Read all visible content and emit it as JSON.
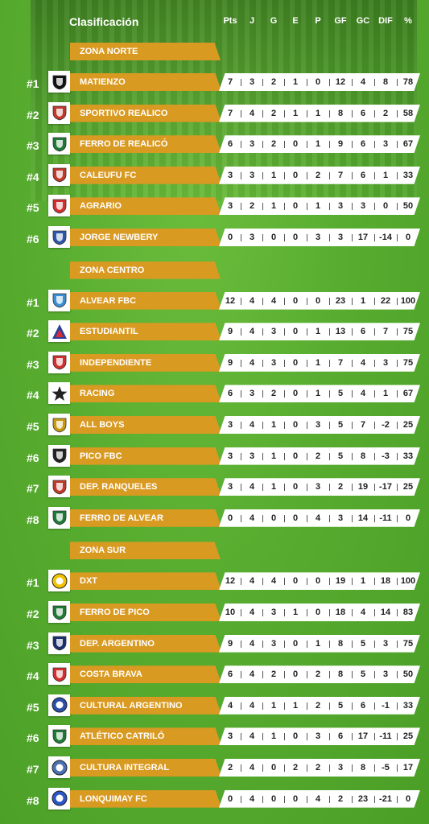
{
  "title": "Clasificación",
  "columns": [
    "Pts",
    "J",
    "G",
    "E",
    "P",
    "GF",
    "GC",
    "DIF",
    "%"
  ],
  "zones": [
    {
      "name": "ZONA NORTE",
      "teams": [
        {
          "rank": "#1",
          "name": "MATIENZO",
          "logo": "matienzo-crest-icon",
          "color": "#111111",
          "stats": [
            "7",
            "3",
            "2",
            "1",
            "0",
            "12",
            "4",
            "8",
            "78"
          ]
        },
        {
          "rank": "#2",
          "name": "SPORTIVO REALICO",
          "logo": "sportivo-realico-crest-icon",
          "color": "#c0392b",
          "stats": [
            "7",
            "4",
            "2",
            "1",
            "1",
            "8",
            "6",
            "2",
            "58"
          ]
        },
        {
          "rank": "#3",
          "name": "FERRO DE REALICÓ",
          "logo": "ferro-realico-crest-icon",
          "color": "#1e7a36",
          "stats": [
            "6",
            "3",
            "2",
            "0",
            "1",
            "9",
            "6",
            "3",
            "67"
          ]
        },
        {
          "rank": "#4",
          "name": "CALEUFU FC",
          "logo": "caleufu-crest-icon",
          "color": "#c0392b",
          "stats": [
            "3",
            "3",
            "1",
            "0",
            "2",
            "7",
            "6",
            "1",
            "33"
          ]
        },
        {
          "rank": "#5",
          "name": "AGRARIO",
          "logo": "agrario-crest-icon",
          "color": "#d32f2f",
          "stats": [
            "3",
            "2",
            "1",
            "0",
            "1",
            "3",
            "3",
            "0",
            "50"
          ]
        },
        {
          "rank": "#6",
          "name": "JORGE NEWBERY",
          "logo": "jorge-newbery-crest-icon",
          "color": "#2c56a8",
          "stats": [
            "0",
            "3",
            "0",
            "0",
            "3",
            "3",
            "17",
            "-14",
            "0"
          ]
        }
      ]
    },
    {
      "name": "ZONA CENTRO",
      "teams": [
        {
          "rank": "#1",
          "name": "ALVEAR FBC",
          "logo": "alvear-fbc-crest-icon",
          "color": "#3a8fd6",
          "stats": [
            "12",
            "4",
            "4",
            "0",
            "0",
            "23",
            "1",
            "22",
            "100"
          ]
        },
        {
          "rank": "#2",
          "name": "ESTUDIANTIL",
          "logo": "estudiantil-crest-icon",
          "color": "#2b3f9e",
          "stats": [
            "9",
            "4",
            "3",
            "0",
            "1",
            "13",
            "6",
            "7",
            "75"
          ]
        },
        {
          "rank": "#3",
          "name": "INDEPENDIENTE",
          "logo": "independiente-crest-icon",
          "color": "#d32f2f",
          "stats": [
            "9",
            "4",
            "3",
            "0",
            "1",
            "7",
            "4",
            "3",
            "75"
          ]
        },
        {
          "rank": "#4",
          "name": "RACING",
          "logo": "racing-star-icon",
          "color": "#222222",
          "stats": [
            "6",
            "3",
            "2",
            "0",
            "1",
            "5",
            "4",
            "1",
            "67"
          ]
        },
        {
          "rank": "#5",
          "name": "ALL BOYS",
          "logo": "all-boys-crest-icon",
          "color": "#c79a12",
          "stats": [
            "3",
            "4",
            "1",
            "0",
            "3",
            "5",
            "7",
            "-2",
            "25"
          ]
        },
        {
          "rank": "#6",
          "name": "PICO FBC",
          "logo": "pico-fbc-crest-icon",
          "color": "#222222",
          "stats": [
            "3",
            "3",
            "1",
            "0",
            "2",
            "5",
            "8",
            "-3",
            "33"
          ]
        },
        {
          "rank": "#7",
          "name": "DEP. RANQUELES",
          "logo": "ranqueles-crest-icon",
          "color": "#c0392b",
          "stats": [
            "3",
            "4",
            "1",
            "0",
            "3",
            "2",
            "19",
            "-17",
            "25"
          ]
        },
        {
          "rank": "#8",
          "name": "FERRO DE ALVEAR",
          "logo": "ferro-alvear-crest-icon",
          "color": "#1e7a36",
          "stats": [
            "0",
            "4",
            "0",
            "0",
            "4",
            "3",
            "14",
            "-11",
            "0"
          ]
        }
      ]
    },
    {
      "name": "ZONA SUR",
      "teams": [
        {
          "rank": "#1",
          "name": "DXT",
          "logo": "dxt-crest-icon",
          "color": "#f2c200",
          "stats": [
            "12",
            "4",
            "4",
            "0",
            "0",
            "19",
            "1",
            "18",
            "100"
          ]
        },
        {
          "rank": "#2",
          "name": "FERRO DE PICO",
          "logo": "ferro-pico-crest-icon",
          "color": "#1e7a36",
          "stats": [
            "10",
            "4",
            "3",
            "1",
            "0",
            "18",
            "4",
            "14",
            "83"
          ]
        },
        {
          "rank": "#3",
          "name": "DEP. ARGENTINO",
          "logo": "dep-argentino-crest-icon",
          "color": "#1b2e6e",
          "stats": [
            "9",
            "4",
            "3",
            "0",
            "1",
            "8",
            "5",
            "3",
            "75"
          ]
        },
        {
          "rank": "#4",
          "name": "COSTA BRAVA",
          "logo": "costa-brava-crest-icon",
          "color": "#d32f2f",
          "stats": [
            "6",
            "4",
            "2",
            "0",
            "2",
            "8",
            "5",
            "3",
            "50"
          ]
        },
        {
          "rank": "#5",
          "name": "CULTURAL ARGENTINO",
          "logo": "cultural-argentino-crest-icon",
          "color": "#2b4fa8",
          "stats": [
            "4",
            "4",
            "1",
            "1",
            "2",
            "5",
            "6",
            "-1",
            "33"
          ]
        },
        {
          "rank": "#6",
          "name": "ATLÉTICO CATRILÓ",
          "logo": "atletico-catrilo-crest-icon",
          "color": "#1e7a36",
          "stats": [
            "3",
            "4",
            "1",
            "0",
            "3",
            "6",
            "17",
            "-11",
            "25"
          ]
        },
        {
          "rank": "#7",
          "name": "CULTURA INTEGRAL",
          "logo": "cultura-integral-crest-icon",
          "color": "#4a6fb5",
          "stats": [
            "2",
            "4",
            "0",
            "2",
            "2",
            "3",
            "8",
            "-5",
            "17"
          ]
        },
        {
          "rank": "#8",
          "name": "LONQUIMAY FC",
          "logo": "lonquimay-crest-icon",
          "color": "#2b56c8",
          "stats": [
            "0",
            "4",
            "0",
            "0",
            "4",
            "2",
            "23",
            "-21",
            "0"
          ]
        }
      ]
    }
  ]
}
